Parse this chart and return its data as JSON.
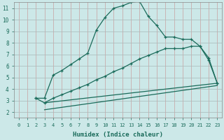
{
  "xlabel": "Humidex (Indice chaleur)",
  "bg_color": "#cce8e8",
  "grid_color": "#b0c8c8",
  "line_color": "#1a6b5a",
  "xlim": [
    -0.5,
    23.5
  ],
  "ylim": [
    1.5,
    11.5
  ],
  "xticks": [
    0,
    1,
    2,
    3,
    4,
    5,
    6,
    7,
    8,
    9,
    10,
    11,
    12,
    13,
    14,
    15,
    16,
    17,
    18,
    19,
    20,
    21,
    22,
    23
  ],
  "yticks": [
    2,
    3,
    4,
    5,
    6,
    7,
    8,
    9,
    10,
    11
  ],
  "line1_x": [
    2,
    3,
    4,
    5,
    6,
    7,
    8,
    9,
    10,
    11,
    12,
    13,
    14,
    15,
    16,
    17,
    18,
    19,
    20,
    21,
    22,
    23
  ],
  "line1_y": [
    3.2,
    3.2,
    5.2,
    5.6,
    6.1,
    6.6,
    7.1,
    9.1,
    10.2,
    11.0,
    11.2,
    11.5,
    11.6,
    10.3,
    9.5,
    8.5,
    8.5,
    8.3,
    8.3,
    7.7,
    6.7,
    4.5
  ],
  "line2_x": [
    2,
    3,
    4,
    5,
    6,
    7,
    8,
    9,
    10,
    11,
    12,
    13,
    14,
    15,
    16,
    17,
    18,
    19,
    20,
    21,
    22,
    23
  ],
  "line2_y": [
    3.2,
    2.8,
    3.2,
    3.5,
    3.8,
    4.1,
    4.4,
    4.8,
    5.1,
    5.5,
    5.8,
    6.2,
    6.6,
    6.9,
    7.2,
    7.5,
    7.5,
    7.5,
    7.7,
    7.7,
    6.5,
    4.5
  ],
  "line3_x": [
    3,
    23
  ],
  "line3_y": [
    2.8,
    4.5
  ],
  "line4_x": [
    3,
    23
  ],
  "line4_y": [
    2.2,
    4.3
  ]
}
